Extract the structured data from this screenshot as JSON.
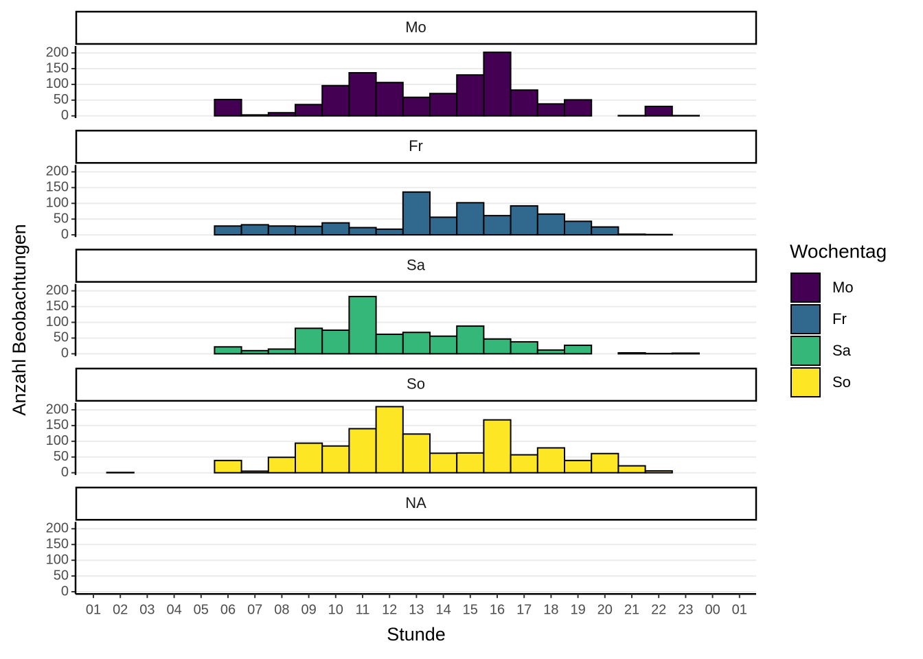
{
  "chart_data": {
    "type": "bar",
    "x_label": "Stunde",
    "y_label": "Anzahl Beobachtungen",
    "legend_title": "Wochentag",
    "facets": [
      "Mo",
      "Fr",
      "Sa",
      "So",
      "NA"
    ],
    "categories": [
      "01",
      "02",
      "03",
      "04",
      "05",
      "06",
      "07",
      "08",
      "09",
      "10",
      "11",
      "12",
      "13",
      "14",
      "15",
      "16",
      "17",
      "18",
      "19",
      "20",
      "21",
      "22",
      "23",
      "00",
      "01"
    ],
    "series": [
      {
        "name": "Mo",
        "color": "#440154",
        "values": [
          null,
          0,
          0,
          0,
          0,
          52,
          3,
          10,
          36,
          96,
          137,
          106,
          59,
          71,
          130,
          202,
          82,
          38,
          51,
          0,
          1,
          30,
          1,
          0,
          null
        ]
      },
      {
        "name": "Fr",
        "color": "#31688e",
        "values": [
          null,
          0,
          0,
          0,
          0,
          28,
          32,
          28,
          27,
          38,
          23,
          18,
          136,
          56,
          102,
          61,
          92,
          66,
          43,
          25,
          2,
          1,
          0,
          0,
          null
        ]
      },
      {
        "name": "Sa",
        "color": "#35b779",
        "values": [
          null,
          0,
          0,
          0,
          0,
          22,
          10,
          15,
          81,
          75,
          182,
          62,
          68,
          56,
          88,
          47,
          38,
          12,
          27,
          0,
          3,
          1,
          2,
          0,
          null
        ]
      },
      {
        "name": "So",
        "color": "#fde725",
        "values": [
          null,
          1,
          0,
          0,
          0,
          39,
          5,
          49,
          94,
          85,
          140,
          210,
          123,
          62,
          63,
          168,
          57,
          79,
          39,
          61,
          22,
          6,
          0,
          0,
          null
        ]
      }
    ],
    "ylim": [
      -7,
      222
    ],
    "yticks": [
      0,
      50,
      100,
      150,
      200
    ],
    "grid": true,
    "legend": "right"
  }
}
